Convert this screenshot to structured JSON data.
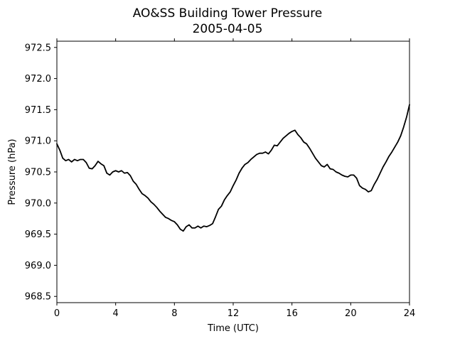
{
  "chart_data": {
    "type": "line",
    "title": "AO&SS Building Tower Pressure",
    "subtitle": "2005-04-05",
    "xlabel": "Time (UTC)",
    "ylabel": "Pressure (hPa)",
    "xlim": [
      0,
      24
    ],
    "ylim": [
      968.4,
      972.6
    ],
    "x_ticks": [
      0,
      4,
      8,
      12,
      16,
      20,
      24
    ],
    "x_tick_labels": [
      "0",
      "4",
      "8",
      "12",
      "16",
      "20",
      "24"
    ],
    "y_ticks": [
      968.5,
      969.0,
      969.5,
      970.0,
      970.5,
      971.0,
      971.5,
      972.0,
      972.5
    ],
    "y_tick_labels": [
      "968.5",
      "969.0",
      "969.5",
      "970.0",
      "970.5",
      "971.0",
      "971.5",
      "972.0",
      "972.5"
    ],
    "grid": false,
    "line_color": "#000000",
    "series": [
      {
        "x": [
          0.0,
          0.2,
          0.4,
          0.6,
          0.8,
          1.0,
          1.2,
          1.4,
          1.6,
          1.8,
          2.0,
          2.2,
          2.4,
          2.6,
          2.8,
          3.0,
          3.2,
          3.4,
          3.6,
          3.8,
          4.0,
          4.2,
          4.4,
          4.6,
          4.8,
          5.0,
          5.2,
          5.4,
          5.6,
          5.8,
          6.0,
          6.2,
          6.4,
          6.6,
          6.8,
          7.0,
          7.2,
          7.4,
          7.6,
          7.8,
          8.0,
          8.2,
          8.4,
          8.6,
          8.8,
          9.0,
          9.2,
          9.4,
          9.6,
          9.8,
          10.0,
          10.2,
          10.4,
          10.6,
          10.8,
          11.0,
          11.2,
          11.4,
          11.6,
          11.8,
          12.0,
          12.2,
          12.4,
          12.6,
          12.8,
          13.0,
          13.2,
          13.4,
          13.6,
          13.8,
          14.0,
          14.2,
          14.4,
          14.6,
          14.8,
          15.0,
          15.2,
          15.4,
          15.6,
          15.8,
          16.0,
          16.2,
          16.4,
          16.6,
          16.8,
          17.0,
          17.2,
          17.4,
          17.6,
          17.8,
          18.0,
          18.2,
          18.4,
          18.6,
          18.8,
          19.0,
          19.2,
          19.4,
          19.6,
          19.8,
          20.0,
          20.2,
          20.4,
          20.6,
          20.8,
          21.0,
          21.2,
          21.4,
          21.6,
          21.8,
          22.0,
          22.2,
          22.4,
          22.6,
          22.8,
          23.0,
          23.2,
          23.4,
          23.6,
          23.8,
          24.0
        ],
        "values": [
          970.95,
          970.85,
          970.72,
          970.68,
          970.7,
          970.66,
          970.7,
          970.68,
          970.7,
          970.7,
          970.65,
          970.56,
          970.55,
          970.6,
          970.67,
          970.63,
          970.6,
          970.48,
          970.45,
          970.5,
          970.52,
          970.5,
          970.52,
          970.48,
          970.49,
          970.44,
          970.35,
          970.3,
          970.22,
          970.15,
          970.12,
          970.08,
          970.02,
          969.98,
          969.93,
          969.87,
          969.82,
          969.77,
          969.75,
          969.72,
          969.7,
          969.65,
          969.58,
          969.55,
          969.62,
          969.65,
          969.6,
          969.6,
          969.63,
          969.6,
          969.63,
          969.62,
          969.64,
          969.67,
          969.78,
          969.9,
          969.95,
          970.05,
          970.12,
          970.18,
          970.28,
          970.37,
          970.48,
          970.56,
          970.62,
          970.65,
          970.7,
          970.74,
          970.78,
          970.8,
          970.8,
          970.82,
          970.79,
          970.85,
          970.93,
          970.92,
          970.98,
          971.04,
          971.08,
          971.12,
          971.15,
          971.17,
          971.1,
          971.05,
          970.98,
          970.95,
          970.88,
          970.8,
          970.72,
          970.66,
          970.6,
          970.58,
          970.62,
          970.55,
          970.54,
          970.5,
          970.48,
          970.45,
          970.43,
          970.42,
          970.45,
          970.45,
          970.4,
          970.28,
          970.24,
          970.22,
          970.18,
          970.2,
          970.3,
          970.38,
          970.48,
          970.58,
          970.66,
          970.75,
          970.82,
          970.9,
          970.98,
          971.08,
          971.22,
          971.38,
          971.58
        ]
      }
    ]
  }
}
